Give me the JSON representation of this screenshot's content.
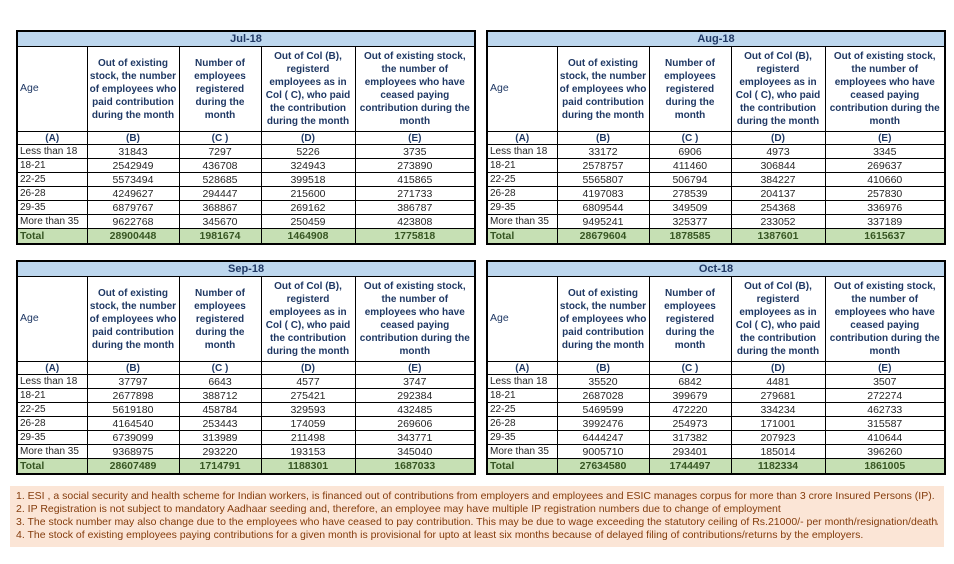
{
  "columns": {
    "age_label": "Age",
    "headers": [
      "Out of existing stock, the number of employees who paid contribution during the month",
      "Number of employees registered during the month",
      "Out of Col (B), registerd employees as in Col ( C), who paid the contribution during the month",
      "Out of existing stock, the number of employees who have ceased paying contribution during the month"
    ],
    "letters": [
      "(A)",
      "(B)",
      "(C )",
      "(D)",
      "(E)"
    ]
  },
  "tables": [
    {
      "month": "Jul-18",
      "total_label": "Total",
      "rows": [
        {
          "age": "Less than 18",
          "values": [
            "31843",
            "7297",
            "5226",
            "3735"
          ]
        },
        {
          "age": "18-21",
          "values": [
            "2542949",
            "436708",
            "324943",
            "273890"
          ]
        },
        {
          "age": "22-25",
          "values": [
            "5573494",
            "528685",
            "399518",
            "415865"
          ]
        },
        {
          "age": "26-28",
          "values": [
            "4249627",
            "294447",
            "215600",
            "271733"
          ]
        },
        {
          "age": "29-35",
          "values": [
            "6879767",
            "368867",
            "269162",
            "386787"
          ]
        },
        {
          "age": "More than 35",
          "values": [
            "9622768",
            "345670",
            "250459",
            "423808"
          ]
        }
      ],
      "totals": [
        "28900448",
        "1981674",
        "1464908",
        "1775818"
      ]
    },
    {
      "month": "Aug-18",
      "total_label": "Total",
      "rows": [
        {
          "age": "Less than 18",
          "values": [
            "33172",
            "6906",
            "4973",
            "3345"
          ]
        },
        {
          "age": "18-21",
          "values": [
            "2578757",
            "411460",
            "306844",
            "269637"
          ]
        },
        {
          "age": "22-25",
          "values": [
            "5565807",
            "506794",
            "384227",
            "410660"
          ]
        },
        {
          "age": "26-28",
          "values": [
            "4197083",
            "278539",
            "204137",
            "257830"
          ]
        },
        {
          "age": "29-35",
          "values": [
            "6809544",
            "349509",
            "254368",
            "336976"
          ]
        },
        {
          "age": "More than 35",
          "values": [
            "9495241",
            "325377",
            "233052",
            "337189"
          ]
        }
      ],
      "totals": [
        "28679604",
        "1878585",
        "1387601",
        "1615637"
      ]
    },
    {
      "month": "Sep-18",
      "total_label": "Total",
      "rows": [
        {
          "age": "Less than 18",
          "values": [
            "37797",
            "6643",
            "4577",
            "3747"
          ]
        },
        {
          "age": "18-21",
          "values": [
            "2677898",
            "388712",
            "275421",
            "292384"
          ]
        },
        {
          "age": "22-25",
          "values": [
            "5619180",
            "458784",
            "329593",
            "432485"
          ]
        },
        {
          "age": "26-28",
          "values": [
            "4164540",
            "253443",
            "174059",
            "269606"
          ]
        },
        {
          "age": "29-35",
          "values": [
            "6739099",
            "313989",
            "211498",
            "343771"
          ]
        },
        {
          "age": "More than 35",
          "values": [
            "9368975",
            "293220",
            "193153",
            "345040"
          ]
        }
      ],
      "totals": [
        "28607489",
        "1714791",
        "1188301",
        "1687033"
      ]
    },
    {
      "month": "Oct-18",
      "total_label": "Total",
      "rows": [
        {
          "age": "Less than 18",
          "values": [
            "35520",
            "6842",
            "4481",
            "3507"
          ]
        },
        {
          "age": "18-21",
          "values": [
            "2687028",
            "399679",
            "279681",
            "272274"
          ]
        },
        {
          "age": "22-25",
          "values": [
            "5469599",
            "472220",
            "334234",
            "462733"
          ]
        },
        {
          "age": "26-28",
          "values": [
            "3992476",
            "254973",
            "171001",
            "315587"
          ]
        },
        {
          "age": "29-35",
          "values": [
            "6444247",
            "317382",
            "207923",
            "410644"
          ]
        },
        {
          "age": "More than 35",
          "values": [
            "9005710",
            "293401",
            "185014",
            "396260"
          ]
        }
      ],
      "totals": [
        "27634580",
        "1744497",
        "1182334",
        "1861005"
      ]
    }
  ],
  "footnotes": [
    "1. ESI , a social security and health scheme for Indian workers, is financed out of contributions from employers and employees and ESIC manages corpus for more than 3 crore Insured Persons (IP).",
    "2. IP Registration is not subject to mandatory Aadhaar seeding and, therefore, an employee may have multiple IP registration numbers due to change of employment",
    "3. The stock number may also change due to the employees who have ceased to pay contribution. This may be due to wage exceeding the statutory ceiling of Rs.21000/- per month/resignation/death/ retirement/dismissal.",
    "4. The stock of existing employees paying contributions for a given month is provisional for upto at least six months because of delayed filing of contributions/returns by the employers."
  ],
  "colors": {
    "month_band": "#BDD7EE",
    "total_row": "#C6E0B4",
    "notes_bg": "#FBE5D6",
    "header_text": "#1F3864",
    "notes_text": "#843C0C"
  }
}
